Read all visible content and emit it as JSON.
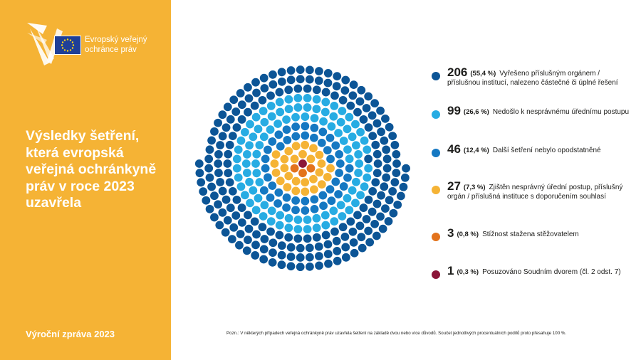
{
  "brand": {
    "name": "Evropský veřejný ochránce práv",
    "colors": {
      "sidebar": "#f5b335",
      "eu_blue": "#1f3f97",
      "eu_stars": "#ffd617"
    },
    "icon": "ombudsman-logo"
  },
  "sidebar": {
    "headline": "Výsledky šetření, která evropská veřejná ochránkyně práv v roce 2023 uzavřela",
    "footer": "Výroční zpráva 2023"
  },
  "chart_data": {
    "type": "pie",
    "title": "Výsledky šetření, která evropská veřejná ochránkyně práv v roce 2023 uzavřela",
    "legend_position": "right",
    "categories": [
      {
        "count": "206",
        "pct": "(55,4 %)",
        "label": "Vyřešeno příslušným orgánem / příslušnou institucí, nalezeno částečné či úplné řešení",
        "color": "#0c5596",
        "value": 206
      },
      {
        "count": "99",
        "pct": "(26,6 %)",
        "label": "Nedošlo k nesprávnému úřednímu postupu",
        "color": "#27ace3",
        "value": 99
      },
      {
        "count": "46",
        "pct": "(12,4 %)",
        "label": "Další šetření nebylo opodstatněné",
        "color": "#1578c2",
        "value": 46
      },
      {
        "count": "27",
        "pct": "(7,3 %)",
        "label": "Zjištěn nesprávný úřední postup, příslušný orgán / příslušná instituce s doporučením souhlasí",
        "color": "#f5b335",
        "value": 27
      },
      {
        "count": "3",
        "pct": "(0,8 %)",
        "label": "Stížnost stažena stěžovatelem",
        "color": "#e3731c",
        "value": 3
      },
      {
        "count": "1",
        "pct": "(0,3 %)",
        "label": "Posuzováno Soudním dvorem (čl. 2 odst. 7)",
        "color": "#8b1538",
        "value": 1
      }
    ]
  },
  "note": "Pozn.: V některých případech veřejná ochránkyně práv uzavřela šetření na základě dvou nebo více důvodů. Součet jednotlivých procentuálních podílů proto přesahuje 100 %."
}
